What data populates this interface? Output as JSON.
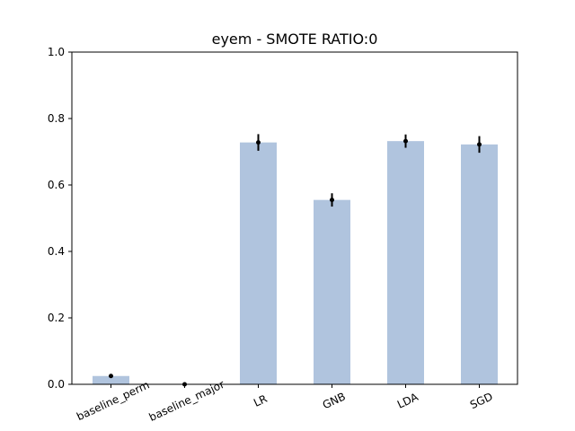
{
  "chart_data": {
    "type": "bar",
    "title": "eyem - SMOTE RATIO:0",
    "xlabel": "",
    "ylabel": "",
    "categories": [
      "baseline_perm",
      "baseline_major",
      "LR",
      "GNB",
      "LDA",
      "SGD"
    ],
    "values": [
      0.025,
      0.0,
      0.728,
      0.555,
      0.732,
      0.722
    ],
    "error_bars": [
      0.002,
      0.0,
      0.025,
      0.02,
      0.02,
      0.025
    ],
    "ylim": [
      0,
      1.0
    ],
    "yticks": [
      0.0,
      0.2,
      0.4,
      0.6,
      0.8,
      1.0
    ],
    "ytick_labels": [
      "0.0",
      "0.2",
      "0.4",
      "0.6",
      "0.8",
      "1.0"
    ],
    "xtick_rotation_deg": -25,
    "grid": false,
    "bar_color": "#b0c4de",
    "error_color": "#000000"
  }
}
